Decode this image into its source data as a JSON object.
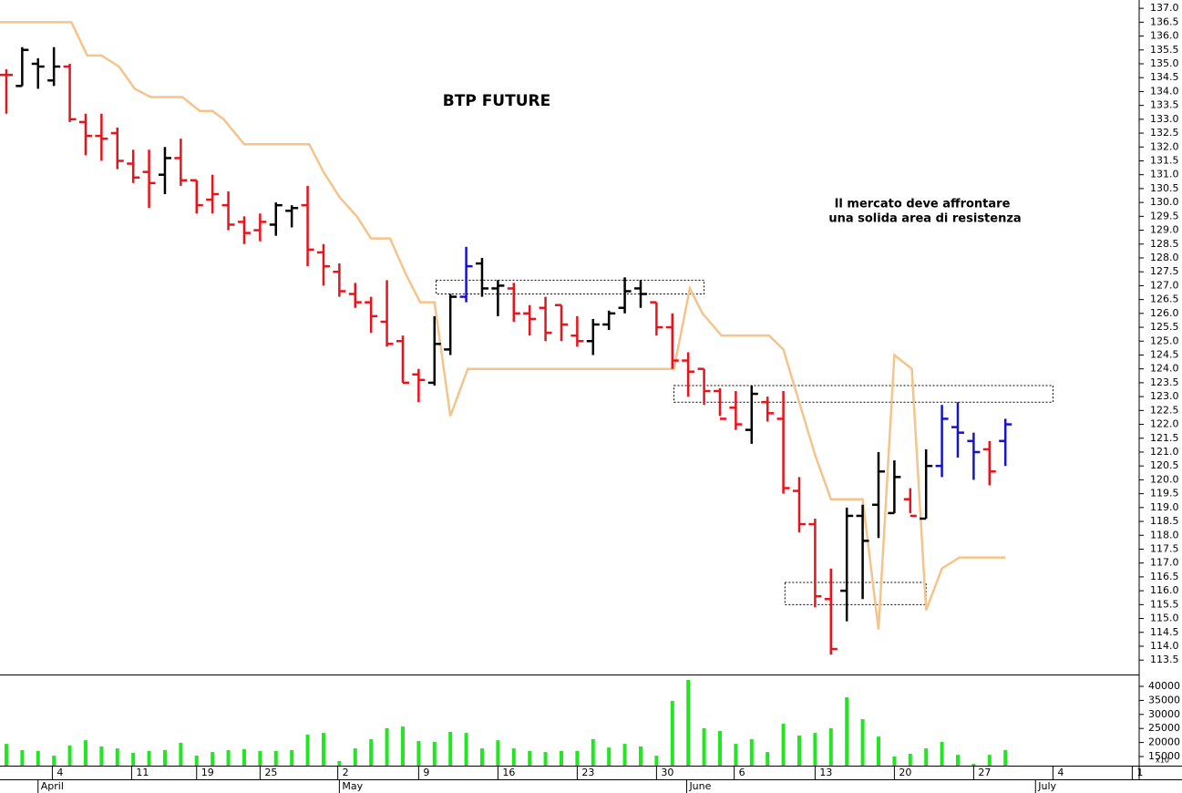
{
  "chart_data": [
    {
      "type": "ohlc",
      "title": "BTP FUTURE",
      "annotations": [
        "Il mercato deve affrontare",
        "una solida area di resistenza"
      ],
      "open": [
        134.6,
        134.2,
        135.0,
        134.4,
        134.9,
        132.9,
        132.4,
        132.5,
        131.4,
        131.1,
        131.0,
        131.6,
        130.8,
        130.1,
        129.9,
        129.3,
        129.0,
        129.2,
        129.7,
        129.9,
        128.2,
        127.5,
        126.7,
        126.4,
        125.7,
        125.0,
        123.8,
        123.5,
        124.7,
        126.6,
        127.8,
        126.9,
        126.9,
        126.0,
        126.2,
        126.3,
        125.2,
        125.0,
        125.6,
        126.2,
        126.9,
        126.4,
        125.5,
        124.3,
        124.0,
        123.2,
        122.6,
        121.8,
        122.8,
        122.2,
        119.6,
        118.4,
        115.7,
        116.0,
        118.7,
        119.1,
        118.8,
        119.3,
        118.6,
        120.5,
        121.9,
        121.4,
        121.1,
        121.4
      ],
      "high": [
        134.8,
        135.6,
        135.2,
        135.6,
        135.0,
        133.2,
        133.2,
        132.7,
        131.9,
        131.9,
        132.0,
        132.3,
        130.8,
        131.0,
        130.4,
        129.5,
        129.6,
        130.0,
        129.9,
        130.6,
        128.5,
        127.8,
        127.1,
        126.6,
        127.2,
        125.2,
        124.0,
        125.9,
        126.7,
        128.4,
        128.0,
        127.2,
        127.1,
        126.3,
        126.6,
        126.3,
        125.9,
        125.8,
        126.1,
        127.3,
        127.2,
        126.4,
        126.0,
        124.6,
        124.0,
        123.3,
        123.2,
        123.4,
        123.0,
        123.2,
        120.1,
        118.6,
        116.8,
        119.0,
        119.1,
        121.0,
        120.7,
        119.7,
        121.1,
        122.7,
        122.8,
        121.7,
        121.4,
        122.2
      ],
      "low": [
        133.2,
        134.2,
        134.1,
        134.2,
        132.9,
        131.7,
        131.5,
        131.2,
        130.7,
        129.8,
        130.3,
        130.6,
        129.6,
        129.6,
        129.0,
        128.5,
        128.6,
        128.8,
        129.1,
        127.7,
        127.0,
        126.6,
        126.2,
        125.3,
        124.8,
        123.5,
        122.8,
        123.4,
        124.5,
        126.4,
        126.6,
        125.9,
        125.7,
        125.2,
        125.0,
        125.0,
        124.8,
        124.5,
        125.4,
        126.0,
        126.2,
        125.2,
        124.0,
        123.0,
        122.7,
        122.3,
        121.8,
        121.3,
        122.1,
        119.5,
        118.1,
        115.4,
        113.7,
        114.9,
        115.7,
        117.9,
        118.8,
        118.8,
        118.6,
        120.1,
        120.8,
        120.0,
        119.8,
        120.5
      ],
      "close": [
        134.6,
        135.5,
        134.9,
        134.9,
        133.0,
        132.4,
        132.3,
        131.5,
        130.9,
        130.7,
        131.6,
        130.8,
        129.9,
        130.3,
        129.2,
        128.9,
        129.3,
        129.9,
        129.8,
        128.3,
        127.7,
        126.8,
        126.4,
        125.9,
        124.9,
        123.5,
        123.6,
        124.9,
        126.6,
        127.7,
        126.9,
        127.0,
        126.0,
        125.8,
        125.3,
        125.6,
        125.0,
        125.6,
        126.0,
        126.8,
        126.7,
        125.5,
        124.3,
        123.9,
        123.2,
        122.2,
        122.0,
        123.1,
        122.4,
        119.7,
        118.4,
        115.8,
        113.9,
        118.7,
        117.8,
        120.3,
        120.1,
        118.7,
        120.5,
        122.2,
        121.7,
        121.0,
        120.3,
        122.0
      ],
      "colors": [
        "#e8141c",
        "#000000",
        "#000000",
        "#000000",
        "#e8141c",
        "#e8141c",
        "#e8141c",
        "#e8141c",
        "#e8141c",
        "#e8141c",
        "#000000",
        "#e8141c",
        "#e8141c",
        "#e8141c",
        "#e8141c",
        "#e8141c",
        "#e8141c",
        "#000000",
        "#000000",
        "#e8141c",
        "#e8141c",
        "#e8141c",
        "#e8141c",
        "#e8141c",
        "#e8141c",
        "#e8141c",
        "#e8141c",
        "#000000",
        "#000000",
        "#1414c8",
        "#000000",
        "#000000",
        "#e8141c",
        "#e8141c",
        "#e8141c",
        "#e8141c",
        "#e8141c",
        "#000000",
        "#000000",
        "#000000",
        "#000000",
        "#e8141c",
        "#e8141c",
        "#e8141c",
        "#e8141c",
        "#e8141c",
        "#e8141c",
        "#000000",
        "#e8141c",
        "#e8141c",
        "#e8141c",
        "#e8141c",
        "#e8141c",
        "#000000",
        "#000000",
        "#000000",
        "#000000",
        "#e8141c",
        "#000000",
        "#1414c8",
        "#1414c8",
        "#1414c8",
        "#e8141c",
        "#1414c8"
      ],
      "overlay": {
        "color": "#f5c48a",
        "x": [
          -0.4,
          4.1,
          5.1,
          6.0,
          7.1,
          8.1,
          9.1,
          11.1,
          12.2,
          13.0,
          13.7,
          15.0,
          19.1,
          20.0,
          21.0,
          22.1,
          23.0,
          24.2,
          25.2,
          26.1,
          27.0,
          28.0,
          29.1,
          42.1,
          43.1,
          43.9,
          45.1,
          48.1,
          49.0,
          50.0,
          51.0,
          52.0,
          54.0,
          55.0,
          56.0,
          57.1,
          58.0,
          59.0,
          60.1,
          63.0
        ],
        "values": [
          136.5,
          136.5,
          135.3,
          135.3,
          134.9,
          134.1,
          133.8,
          133.8,
          133.3,
          133.3,
          133.0,
          132.1,
          132.1,
          131.1,
          130.2,
          129.5,
          128.7,
          128.7,
          127.4,
          126.4,
          126.4,
          122.3,
          124.0,
          124.0,
          126.9,
          126.0,
          125.2,
          125.2,
          124.7,
          122.8,
          120.9,
          119.3,
          119.3,
          114.6,
          124.5,
          124.0,
          115.3,
          116.8,
          117.2,
          117.2
        ]
      },
      "zones": [
        {
          "x0": 27.1,
          "x1": 44.0,
          "y0": 126.7,
          "y1": 127.2
        },
        {
          "x0": 42.1,
          "x1": 66.0,
          "y0": 122.8,
          "y1": 123.4
        },
        {
          "x0": 49.1,
          "x1": 58.0,
          "y0": 115.5,
          "y1": 116.3
        }
      ],
      "xlim": [
        -0.4,
        71.15
      ],
      "ylim": [
        112.98,
        137.3
      ],
      "yticks": [
        {
          "value": 113.5,
          "label": "113.5"
        },
        {
          "value": 114,
          "label": "114.0"
        },
        {
          "value": 114.5,
          "label": "114.5"
        },
        {
          "value": 115,
          "label": "115.0"
        },
        {
          "value": 115.5,
          "label": "115.5"
        },
        {
          "value": 116,
          "label": "116.0"
        },
        {
          "value": 116.5,
          "label": "116.5"
        },
        {
          "value": 117,
          "label": "117.0"
        },
        {
          "value": 117.5,
          "label": "117.5"
        },
        {
          "value": 118,
          "label": "118.0"
        },
        {
          "value": 118.5,
          "label": "118.5"
        },
        {
          "value": 119,
          "label": "119.0"
        },
        {
          "value": 119.5,
          "label": "119.5"
        },
        {
          "value": 120,
          "label": "120.0"
        },
        {
          "value": 120.5,
          "label": "120.5"
        },
        {
          "value": 121,
          "label": "121.0"
        },
        {
          "value": 121.5,
          "label": "121.5"
        },
        {
          "value": 122,
          "label": "122.0"
        },
        {
          "value": 122.5,
          "label": "122.5"
        },
        {
          "value": 123,
          "label": "123.0"
        },
        {
          "value": 123.5,
          "label": "123.5"
        },
        {
          "value": 124,
          "label": "124.0"
        },
        {
          "value": 124.5,
          "label": "124.5"
        },
        {
          "value": 125,
          "label": "125.0"
        },
        {
          "value": 125.5,
          "label": "125.5"
        },
        {
          "value": 126,
          "label": "126.0"
        },
        {
          "value": 126.5,
          "label": "126.5"
        },
        {
          "value": 127,
          "label": "127.0"
        },
        {
          "value": 127.5,
          "label": "127.5"
        },
        {
          "value": 128,
          "label": "128.0"
        },
        {
          "value": 128.5,
          "label": "128.5"
        },
        {
          "value": 129,
          "label": "129.0"
        },
        {
          "value": 129.5,
          "label": "129.5"
        },
        {
          "value": 130,
          "label": "130.0"
        },
        {
          "value": 130.5,
          "label": "130.5"
        },
        {
          "value": 131,
          "label": "131.0"
        },
        {
          "value": 131.5,
          "label": "131.5"
        },
        {
          "value": 132,
          "label": "132.0"
        },
        {
          "value": 132.5,
          "label": "132.5"
        },
        {
          "value": 133,
          "label": "133.0"
        },
        {
          "value": 133.5,
          "label": "133.5"
        },
        {
          "value": 134,
          "label": "134.0"
        },
        {
          "value": 134.5,
          "label": "134.5"
        },
        {
          "value": 135,
          "label": "135.0"
        },
        {
          "value": 135.5,
          "label": "135.5"
        },
        {
          "value": 136,
          "label": "136.0"
        },
        {
          "value": 136.5,
          "label": "136.5"
        },
        {
          "value": 137,
          "label": "137.0"
        }
      ]
    },
    {
      "type": "bar",
      "color": "#22e622",
      "y_unit_label": "x10",
      "values": [
        19500,
        17300,
        17000,
        15300,
        18900,
        20800,
        18600,
        17900,
        16300,
        17000,
        17300,
        19900,
        15300,
        16600,
        17300,
        17600,
        17000,
        17000,
        17300,
        22800,
        23400,
        13400,
        17900,
        21200,
        25100,
        25700,
        20500,
        20200,
        23800,
        23400,
        17900,
        20800,
        17900,
        17000,
        16600,
        17000,
        17000,
        21200,
        18200,
        19500,
        18600,
        15300,
        34800,
        42300,
        25100,
        24100,
        19500,
        21200,
        16600,
        26700,
        22500,
        23400,
        25100,
        36100,
        28300,
        22100,
        15000,
        16000,
        17900,
        20200,
        15600,
        12400,
        15600,
        17300
      ],
      "xlim": [
        -0.4,
        71.15
      ],
      "ylim": [
        11750,
        43900
      ],
      "yticks": [
        15000,
        20000,
        25000,
        30000,
        35000,
        40000
      ],
      "xticks": [
        {
          "value": 2.9,
          "label": "4"
        },
        {
          "value": 7.9,
          "label": "11"
        },
        {
          "value": 12.0,
          "label": "19"
        },
        {
          "value": 16.0,
          "label": "25"
        },
        {
          "value": 20.9,
          "label": "2"
        },
        {
          "value": 26.0,
          "label": "9"
        },
        {
          "value": 31.0,
          "label": "16"
        },
        {
          "value": 36.0,
          "label": "23"
        },
        {
          "value": 41.0,
          "label": "30"
        },
        {
          "value": 45.9,
          "label": "6"
        },
        {
          "value": 51.0,
          "label": "13"
        },
        {
          "value": 56.0,
          "label": "20"
        },
        {
          "value": 61.0,
          "label": "27"
        },
        {
          "value": 66.0,
          "label": "4"
        },
        {
          "value": 71.0,
          "label": "1"
        }
      ],
      "month_ticks": [
        {
          "value": 2.0,
          "label": "April"
        },
        {
          "value": 21.0,
          "label": "May"
        },
        {
          "value": 42.9,
          "label": "June"
        },
        {
          "value": 64.9,
          "label": "July"
        }
      ]
    }
  ]
}
